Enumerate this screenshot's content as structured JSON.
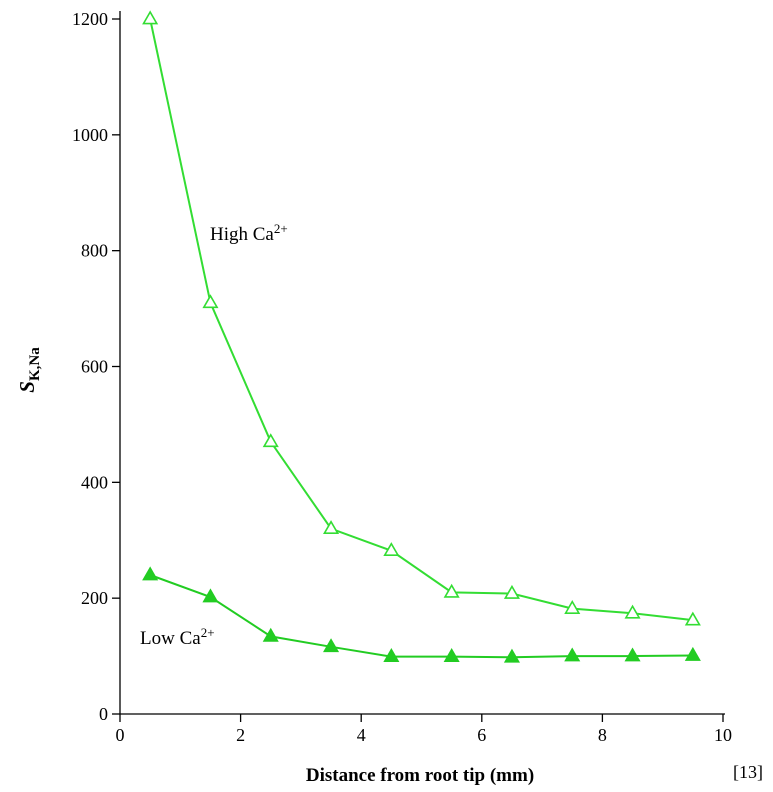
{
  "chart_data": {
    "type": "line",
    "xlabel": "Distance from root tip (mm)",
    "ylabel": {
      "main": "S",
      "sub": "K,Na"
    },
    "xlim": [
      0,
      10
    ],
    "ylim": [
      0,
      1200
    ],
    "xticks": [
      0,
      2,
      4,
      6,
      8,
      10
    ],
    "yticks": [
      0,
      200,
      400,
      600,
      800,
      1000,
      1200
    ],
    "grid": false,
    "legend": "none",
    "x": [
      0.5,
      1.5,
      2.5,
      3.5,
      4.5,
      5.5,
      6.5,
      7.5,
      8.5,
      9.5
    ],
    "series": [
      {
        "label": {
          "base": "High Ca",
          "sup": "2+"
        },
        "marker": "open-triangle",
        "color": "#33dd33",
        "values": [
          1200,
          710,
          470,
          320,
          282,
          210,
          208,
          182,
          174,
          162
        ]
      },
      {
        "label": {
          "base": "Low Ca",
          "sup": "2+"
        },
        "marker": "filled-triangle",
        "color": "#22cc22",
        "values": [
          240,
          202,
          134,
          116,
          99,
          99,
          98,
          100,
          100,
          101
        ]
      }
    ]
  },
  "reference": "[13]"
}
